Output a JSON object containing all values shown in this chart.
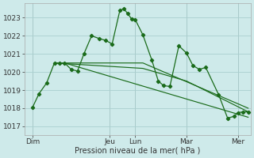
{
  "background_color": "#ceeaea",
  "grid_color": "#aacfcf",
  "line_color": "#1a6b1a",
  "marker_color": "#1a6b1a",
  "xlabel": "Pression niveau de la mer( hPa )",
  "ylim": [
    1016.5,
    1023.8
  ],
  "yticks": [
    1017,
    1018,
    1019,
    1020,
    1021,
    1022,
    1023
  ],
  "xtick_labels": [
    "Dim",
    "",
    "",
    "Jeu",
    "Lun",
    "",
    "Mar",
    "",
    "Mer"
  ],
  "xtick_positions": [
    0,
    1,
    2,
    3,
    4,
    5,
    6,
    7,
    8
  ],
  "xlim": [
    -0.3,
    8.5
  ],
  "series": [
    {
      "x": [
        0.0,
        0.25,
        0.55,
        0.85,
        1.05,
        1.25,
        1.5,
        1.75,
        2.0,
        2.3,
        2.6,
        2.85,
        3.1,
        3.4,
        3.55,
        3.7,
        3.85,
        4.0,
        4.3,
        4.65,
        4.9,
        5.1,
        5.35,
        5.7,
        6.0,
        6.25,
        6.5,
        6.75,
        7.25,
        7.6,
        7.85,
        8.0,
        8.2,
        8.4
      ],
      "y": [
        1018.05,
        1018.8,
        1019.4,
        1020.5,
        1020.5,
        1020.5,
        1020.15,
        1020.05,
        1021.0,
        1022.0,
        1021.85,
        1021.75,
        1021.55,
        1023.4,
        1023.5,
        1023.25,
        1022.95,
        1022.9,
        1022.05,
        1020.65,
        1019.5,
        1019.25,
        1019.2,
        1021.45,
        1021.05,
        1020.35,
        1020.15,
        1020.25,
        1018.75,
        1017.45,
        1017.55,
        1017.75,
        1017.8,
        1017.8
      ],
      "marker": true
    },
    {
      "x": [
        0.85,
        1.25,
        8.4
      ],
      "y": [
        1020.5,
        1020.5,
        1017.5
      ],
      "marker": false
    },
    {
      "x": [
        0.85,
        1.25,
        4.3,
        8.4
      ],
      "y": [
        1020.5,
        1020.5,
        1020.5,
        1018.0
      ],
      "marker": false
    },
    {
      "x": [
        0.85,
        4.3,
        6.0,
        8.4
      ],
      "y": [
        1020.5,
        1020.2,
        1019.5,
        1017.8
      ],
      "marker": false
    }
  ]
}
